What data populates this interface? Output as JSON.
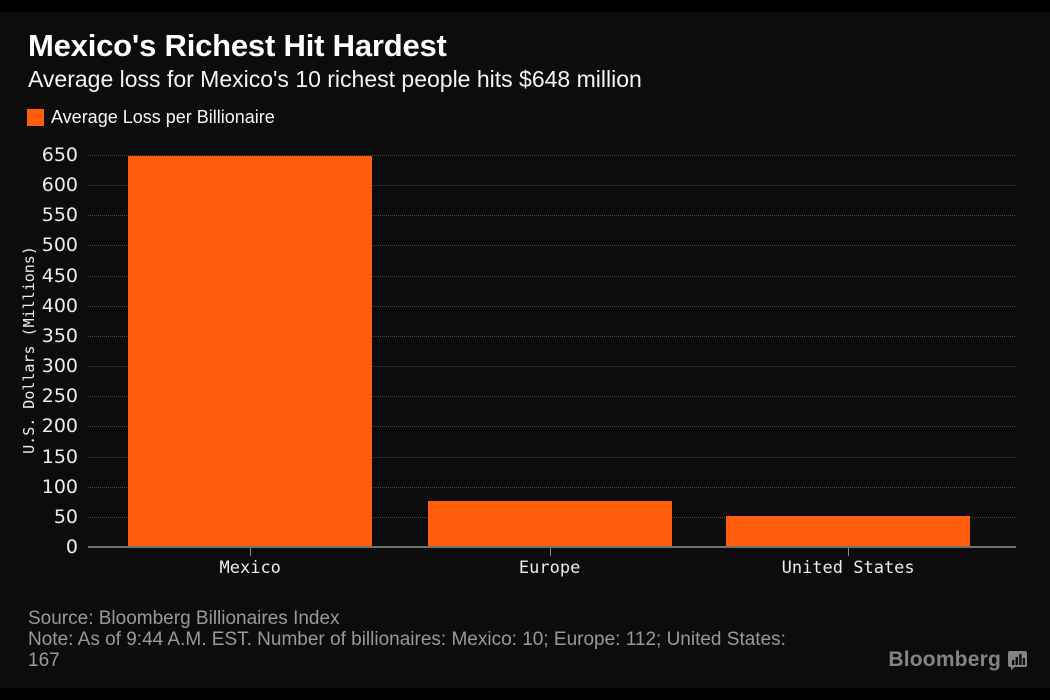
{
  "header": {
    "title": "Mexico's Richest Hit Hardest",
    "subtitle": "Average loss for Mexico's 10 richest people hits $648 million"
  },
  "legend": {
    "label": "Average Loss per Billionaire",
    "swatch_color": "#ff5c0c"
  },
  "chart_data": {
    "type": "bar",
    "title": "Mexico's Richest Hit Hardest",
    "subtitle": "Average loss for Mexico's 10 richest people hits $648 million",
    "categories": [
      "Mexico",
      "Europe",
      "United States"
    ],
    "series": [
      {
        "name": "Average Loss per Billionaire",
        "values": [
          648,
          76,
          51
        ]
      }
    ],
    "xlabel": "",
    "ylabel": "U.S. Dollars (Millions)",
    "ylim": [
      0,
      650
    ],
    "ytick_step": 50,
    "yticks": [
      0,
      50,
      100,
      150,
      200,
      250,
      300,
      350,
      400,
      450,
      500,
      550,
      600,
      650
    ],
    "grid": "horizontal-dotted",
    "legend_position": "top-left",
    "bar_color": "#ff5c0c",
    "background_color": "#0c0c0c"
  },
  "footer": {
    "source_line": "Source: Bloomberg Billionaires Index",
    "note_lines": [
      "Note: As of 9:44 A.M. EST. Number of billionaires: Mexico: 10; Europe: 112; United States:",
      "167"
    ],
    "logo_text": "Bloomberg"
  },
  "colors": {
    "accent_orange": "#ff5c0c",
    "background": "#000000",
    "grid": "#4a4a4a",
    "axis": "#707070",
    "footer_text": "#999999",
    "logo_gray": "#848484"
  }
}
